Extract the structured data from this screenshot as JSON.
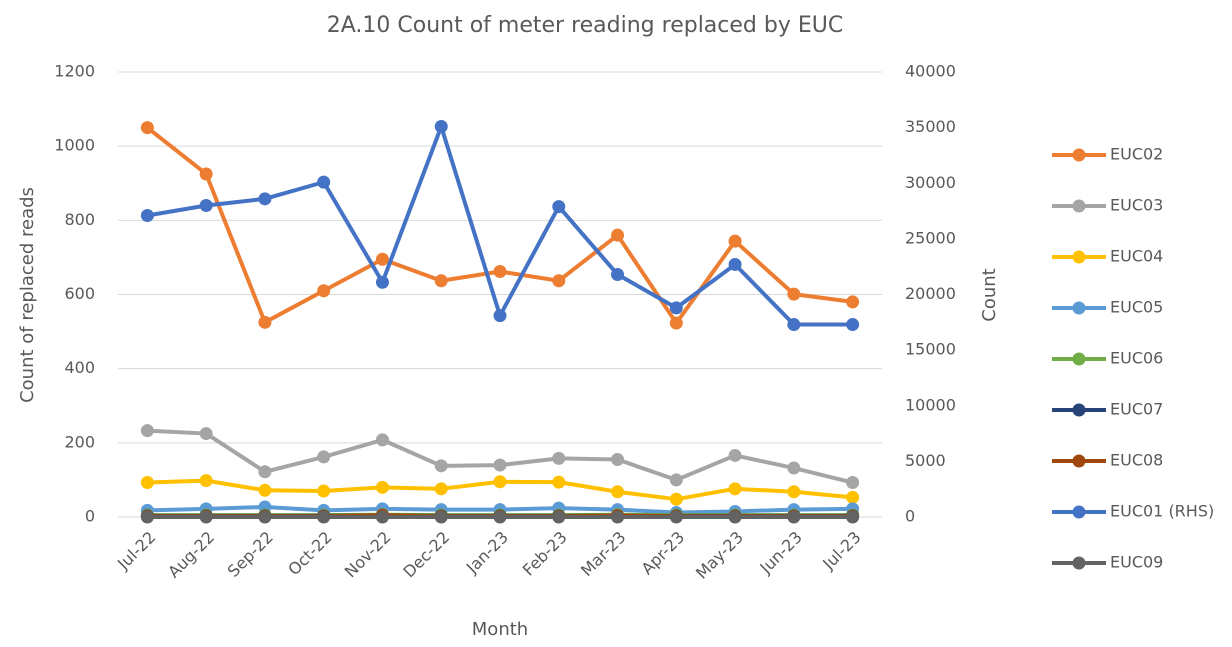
{
  "chart_data": {
    "type": "line",
    "title": "2A.10 Count of meter reading replaced by EUC",
    "x_label": "Month",
    "y_label": "Count of replaced reads",
    "y2_label": "Count",
    "categories": [
      "Jul-22",
      "Aug-22",
      "Sep-22",
      "Oct-22",
      "Nov-22",
      "Dec-22",
      "Jan-23",
      "Feb-23",
      "Mar-23",
      "Apr-23",
      "May-23",
      "Jun-23",
      "Jul-23"
    ],
    "ylim": [
      0,
      1200
    ],
    "yticks": [
      0,
      200,
      400,
      600,
      800,
      1000,
      1200
    ],
    "y2lim": [
      0,
      40000
    ],
    "y2ticks": [
      0,
      5000,
      10000,
      15000,
      20000,
      25000,
      30000,
      35000,
      40000
    ],
    "grid": true,
    "legend": "right",
    "series": [
      {
        "name": "EUC02",
        "color": "#ed7d31",
        "values": [
          1050,
          925,
          525,
          610,
          695,
          637,
          662,
          637,
          760,
          523,
          744,
          601,
          580
        ]
      },
      {
        "name": "EUC03",
        "color": "#a5a5a5",
        "values": [
          233,
          225,
          122,
          162,
          208,
          138,
          140,
          158,
          155,
          100,
          166,
          132,
          93
        ]
      },
      {
        "name": "EUC04",
        "color": "#ffc000",
        "values": [
          93,
          98,
          72,
          70,
          80,
          76,
          95,
          94,
          68,
          48,
          76,
          68,
          53
        ]
      },
      {
        "name": "EUC05",
        "color": "#5b9bd5",
        "values": [
          18,
          22,
          27,
          18,
          22,
          20,
          20,
          24,
          20,
          12,
          15,
          20,
          22
        ]
      },
      {
        "name": "EUC06",
        "color": "#70ad47",
        "values": [
          5,
          5,
          5,
          5,
          6,
          5,
          5,
          5,
          6,
          5,
          5,
          5,
          5
        ]
      },
      {
        "name": "EUC07",
        "color": "#264478",
        "values": [
          3,
          3,
          3,
          3,
          4,
          3,
          3,
          3,
          3,
          3,
          3,
          3,
          3
        ]
      },
      {
        "name": "EUC08",
        "color": "#9e480e",
        "values": [
          2,
          2,
          2,
          2,
          5,
          2,
          2,
          2,
          4,
          2,
          2,
          2,
          2
        ]
      },
      {
        "name": "EUC01 (RHS)",
        "color": "#4472c4",
        "axis": "y2",
        "values": [
          27100,
          28000,
          28600,
          30100,
          21100,
          35100,
          18100,
          27900,
          21800,
          18800,
          22700,
          17300,
          17300
        ]
      },
      {
        "name": "EUC09",
        "color": "#636363",
        "values": [
          0,
          0,
          0,
          0,
          0,
          0,
          0,
          0,
          0,
          0,
          0,
          0,
          0
        ]
      }
    ]
  }
}
